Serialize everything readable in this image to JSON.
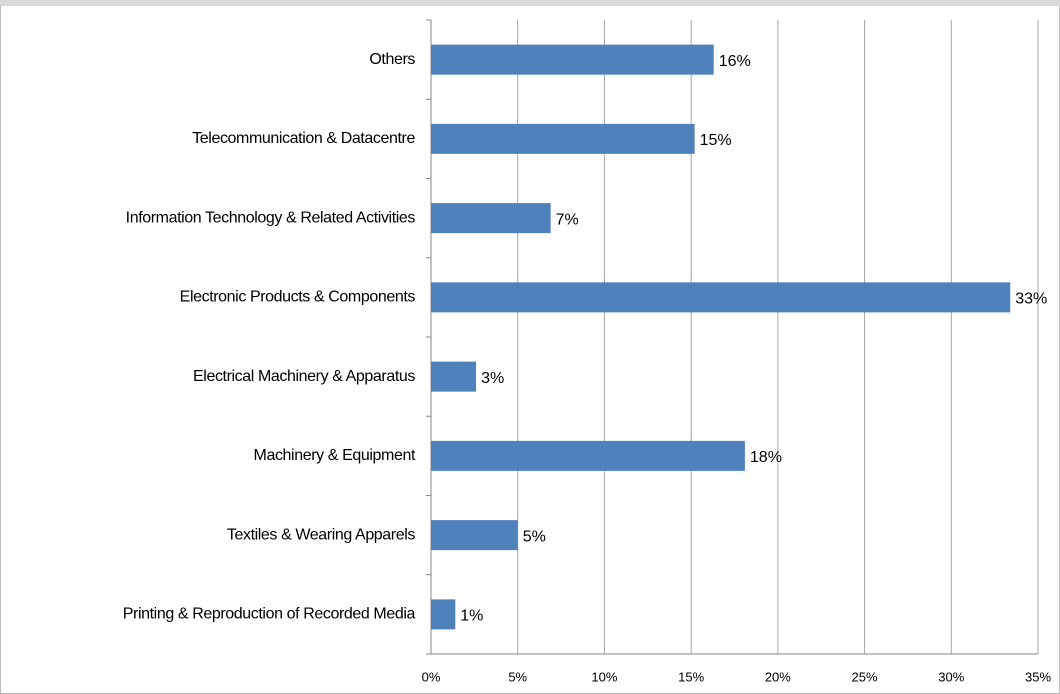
{
  "chart_data": {
    "type": "hbar",
    "categories": [
      "Others",
      "Telecommunication & Datacentre",
      "Information Technology & Related Activities",
      "Electronic Products & Components",
      "Electrical Machinery & Apparatus",
      "Machinery & Equipment",
      "Textiles & Wearing Apparels",
      "Printing & Reproduction of Recorded Media"
    ],
    "values": [
      16.3,
      15.2,
      6.9,
      33.4,
      2.6,
      18.1,
      5.0,
      1.4
    ],
    "value_labels": [
      "16%",
      "15%",
      "7%",
      "33%",
      "3%",
      "18%",
      "5%",
      "1%"
    ],
    "color": "#4f81bd",
    "xlim": [
      0,
      35
    ],
    "xticks": [
      {
        "value": 0,
        "label": "0%"
      },
      {
        "value": 5,
        "label": "5%"
      },
      {
        "value": 10,
        "label": "10%"
      },
      {
        "value": 15,
        "label": "15%"
      },
      {
        "value": 20,
        "label": "20%"
      },
      {
        "value": 25,
        "label": "25%"
      },
      {
        "value": 30,
        "label": "30%"
      },
      {
        "value": 35,
        "label": "35%"
      }
    ],
    "grid": true
  }
}
